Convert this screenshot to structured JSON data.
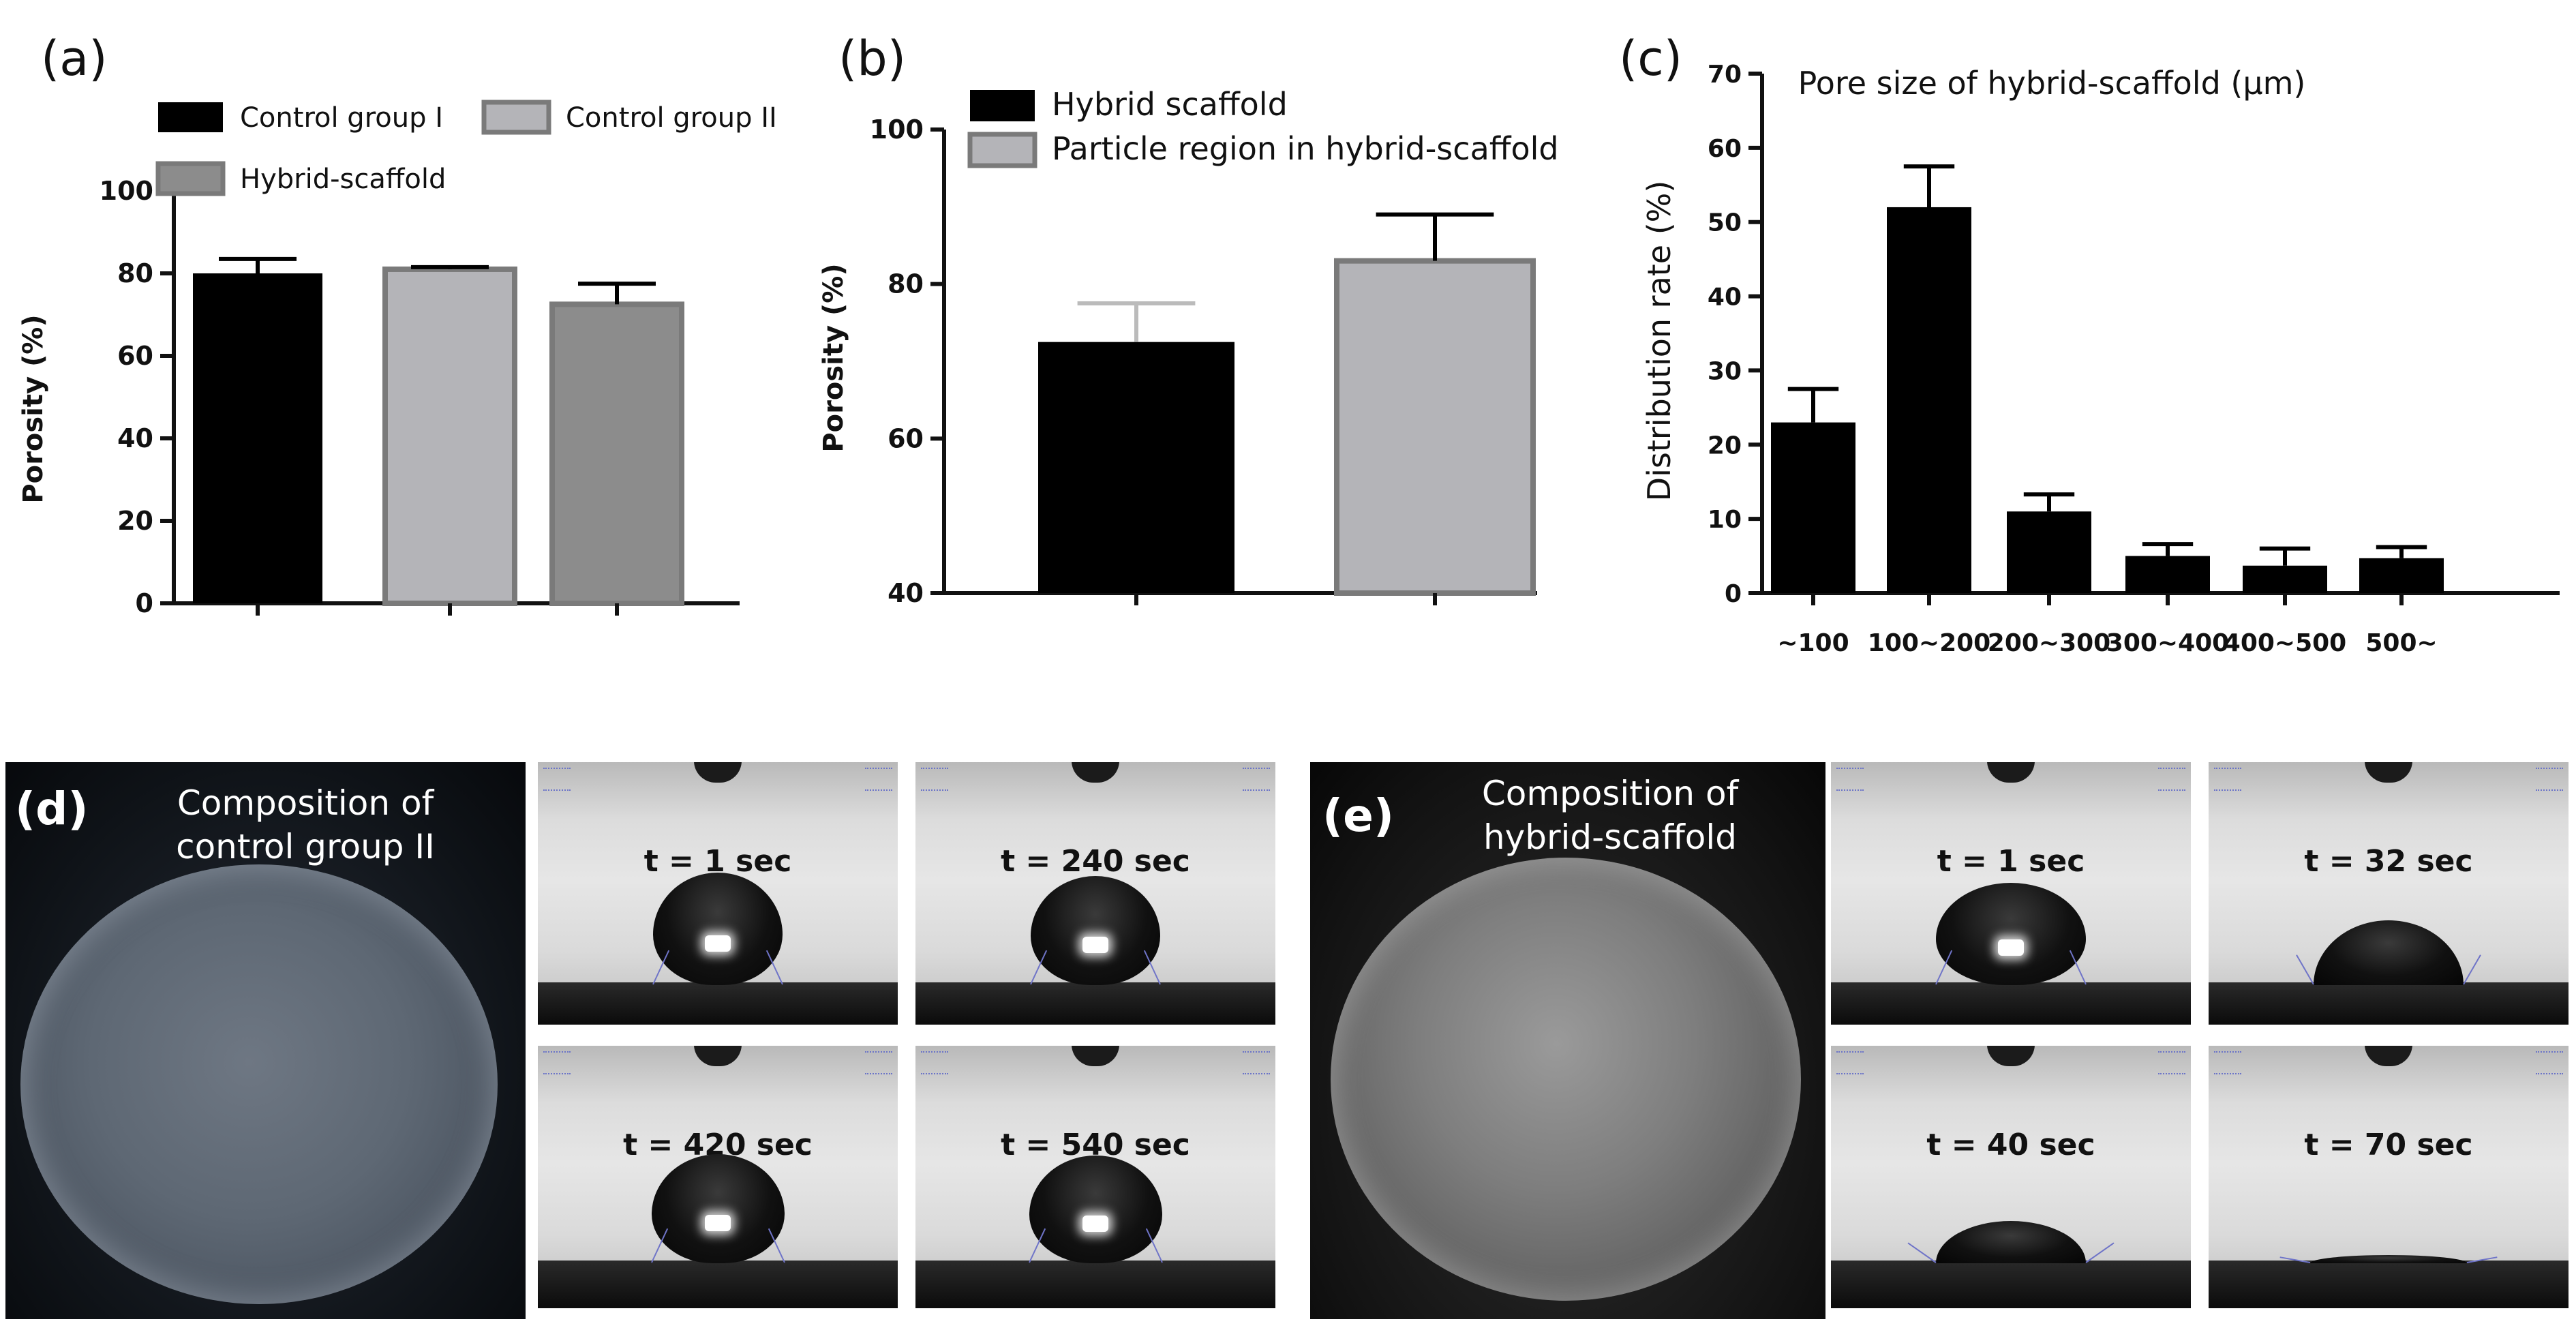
{
  "chart_data": [
    {
      "panel": "(a)",
      "type": "bar",
      "categories": [
        "Control group I",
        "Control group II",
        "Hybrid-scaffold"
      ],
      "series": [
        {
          "values": [
            80,
            81,
            72.5
          ],
          "errors": [
            3.5,
            0.5,
            5
          ]
        }
      ],
      "colors": [
        "#000000",
        "#b4b4b8",
        "#8c8c8c"
      ],
      "legend": [
        "Control group I",
        "Control group II",
        "Hybrid-scaffold"
      ],
      "legend_position": "top",
      "ylabel": "Porosity (%)",
      "xlabel": "",
      "ylim": [
        0,
        100
      ],
      "yticks": [
        "0",
        "20",
        "40",
        "60",
        "80",
        "100"
      ],
      "grid": false
    },
    {
      "panel": "(b)",
      "type": "bar",
      "categories": [
        "Hybrid scaffold",
        "Particle region in hybrid-scaffold"
      ],
      "series": [
        {
          "values": [
            72.5,
            83
          ],
          "errors": [
            5,
            6
          ]
        }
      ],
      "colors": [
        "#000000",
        "#b4b4b8"
      ],
      "legend": [
        "Hybrid scaffold",
        "Particle region in hybrid-scaffold"
      ],
      "legend_position": "top",
      "ylabel": "Porosity (%)",
      "xlabel": "",
      "ylim": [
        40,
        100
      ],
      "yticks": [
        "40",
        "60",
        "80",
        "100"
      ],
      "grid": false
    },
    {
      "panel": "(c)",
      "type": "bar",
      "title": "Pore size of hybrid-scaffold (μm)",
      "categories": [
        "~100",
        "100~200",
        "200~300",
        "300~400",
        "400~500",
        "500~"
      ],
      "series": [
        {
          "values": [
            23,
            52,
            11,
            5,
            3.7,
            4.7
          ],
          "errors": [
            4.5,
            5.5,
            2.3,
            1.6,
            2.3,
            1.5
          ]
        }
      ],
      "colors": [
        "#000000"
      ],
      "ylabel": "Distribution rate (%)",
      "xlabel": "",
      "ylim": [
        0,
        70
      ],
      "yticks": [
        "0",
        "10",
        "20",
        "30",
        "40",
        "50",
        "60",
        "70"
      ],
      "grid": false
    }
  ],
  "photos": {
    "d": {
      "letter": "(d)",
      "caption": "Composition of\ncontrol group II",
      "frames": [
        "t = 1 sec",
        "t = 240 sec",
        "t = 420 sec",
        "t = 540 sec"
      ]
    },
    "e": {
      "letter": "(e)",
      "caption": "Composition of\nhybrid-scaffold",
      "frames": [
        "t = 1 sec",
        "t = 32 sec",
        "t = 40 sec",
        "t = 70 sec"
      ]
    }
  }
}
